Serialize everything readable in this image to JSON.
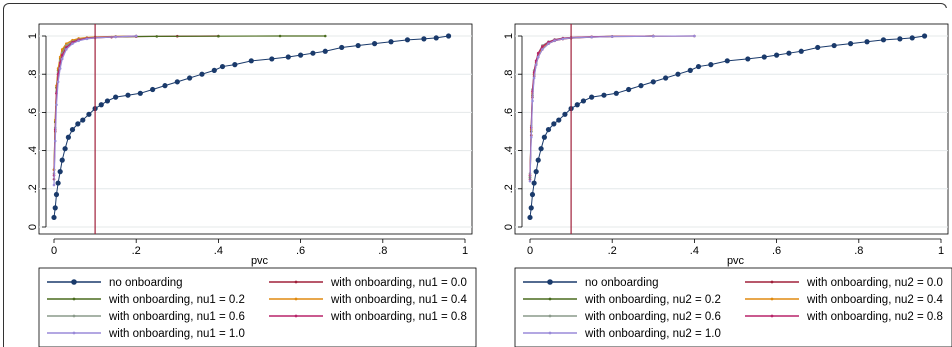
{
  "chart_data": [
    {
      "type": "line",
      "xlabel": "pvc",
      "ylabel": "",
      "xlim": [
        0,
        1
      ],
      "ylim": [
        0,
        1
      ],
      "x_ticks": [
        "0",
        ".2",
        ".4",
        ".6",
        ".8",
        "1"
      ],
      "y_ticks": [
        "0",
        ".2",
        ".4",
        ".6",
        ".8",
        "1"
      ],
      "vline": 0.1,
      "vline_color": "#a0203a",
      "grid": true,
      "legend_position": "bottom",
      "series": [
        {
          "name": "no onboarding",
          "color": "#1a3a6b",
          "marker": "circle",
          "x": [
            0,
            0.003,
            0.006,
            0.01,
            0.015,
            0.02,
            0.027,
            0.035,
            0.045,
            0.058,
            0.07,
            0.085,
            0.1,
            0.115,
            0.13,
            0.15,
            0.18,
            0.21,
            0.24,
            0.27,
            0.3,
            0.33,
            0.36,
            0.39,
            0.41,
            0.44,
            0.48,
            0.53,
            0.57,
            0.6,
            0.63,
            0.66,
            0.7,
            0.74,
            0.78,
            0.82,
            0.86,
            0.9,
            0.93,
            0.96
          ],
          "y": [
            0.05,
            0.1,
            0.17,
            0.23,
            0.29,
            0.35,
            0.41,
            0.47,
            0.51,
            0.54,
            0.56,
            0.59,
            0.62,
            0.64,
            0.66,
            0.68,
            0.69,
            0.7,
            0.72,
            0.74,
            0.76,
            0.78,
            0.8,
            0.82,
            0.84,
            0.85,
            0.87,
            0.88,
            0.89,
            0.9,
            0.91,
            0.92,
            0.94,
            0.95,
            0.96,
            0.97,
            0.98,
            0.985,
            0.99,
            1.0
          ]
        },
        {
          "name": "with onboarding, nu1 = 0.0",
          "color": "#a0203a",
          "marker": "small",
          "x": [
            0,
            0.003,
            0.006,
            0.01,
            0.015,
            0.02,
            0.03,
            0.045,
            0.06,
            0.08,
            0.1,
            0.14,
            0.2,
            0.3,
            0.4
          ],
          "y": [
            0.25,
            0.5,
            0.7,
            0.8,
            0.86,
            0.9,
            0.94,
            0.965,
            0.978,
            0.986,
            0.99,
            0.994,
            0.997,
            0.999,
            1.0
          ]
        },
        {
          "name": "with onboarding, nu1 = 0.2",
          "color": "#4a6b1e",
          "marker": "small",
          "x": [
            0,
            0.003,
            0.006,
            0.01,
            0.015,
            0.02,
            0.03,
            0.045,
            0.06,
            0.08,
            0.1,
            0.15,
            0.25,
            0.4,
            0.55,
            0.66
          ],
          "y": [
            0.3,
            0.55,
            0.73,
            0.82,
            0.88,
            0.92,
            0.95,
            0.972,
            0.983,
            0.99,
            0.993,
            0.996,
            0.998,
            0.999,
            1.0,
            1.0
          ]
        },
        {
          "name": "with onboarding, nu1 = 0.4",
          "color": "#e08a10",
          "marker": "small",
          "x": [
            0,
            0.003,
            0.006,
            0.01,
            0.015,
            0.02,
            0.03,
            0.045,
            0.06,
            0.08,
            0.1,
            0.15,
            0.2
          ],
          "y": [
            0.3,
            0.56,
            0.74,
            0.83,
            0.89,
            0.93,
            0.96,
            0.978,
            0.987,
            0.992,
            0.995,
            0.998,
            1.0
          ]
        },
        {
          "name": "with onboarding, nu1 = 0.6",
          "color": "#8a9a8a",
          "marker": "small",
          "x": [
            0,
            0.003,
            0.006,
            0.01,
            0.015,
            0.02,
            0.03,
            0.045,
            0.06,
            0.08,
            0.1,
            0.15,
            0.2
          ],
          "y": [
            0.28,
            0.52,
            0.71,
            0.81,
            0.87,
            0.91,
            0.95,
            0.97,
            0.982,
            0.989,
            0.993,
            0.997,
            1.0
          ]
        },
        {
          "name": "with onboarding, nu1 = 0.8",
          "color": "#b8246a",
          "marker": "small",
          "x": [
            0,
            0.003,
            0.006,
            0.01,
            0.015,
            0.02,
            0.03,
            0.045,
            0.06,
            0.08,
            0.1,
            0.15,
            0.2
          ],
          "y": [
            0.27,
            0.51,
            0.7,
            0.8,
            0.86,
            0.9,
            0.94,
            0.967,
            0.98,
            0.988,
            0.992,
            0.996,
            1.0
          ]
        },
        {
          "name": "with onboarding, nu1 = 1.0",
          "color": "#9a8ad8",
          "marker": "small",
          "x": [
            0,
            0.003,
            0.006,
            0.01,
            0.015,
            0.02,
            0.03,
            0.045,
            0.06,
            0.08,
            0.1,
            0.15,
            0.2
          ],
          "y": [
            0.22,
            0.45,
            0.64,
            0.76,
            0.83,
            0.88,
            0.93,
            0.96,
            0.975,
            0.985,
            0.99,
            0.995,
            1.0
          ]
        }
      ]
    },
    {
      "type": "line",
      "xlabel": "pvc",
      "ylabel": "",
      "xlim": [
        0,
        1
      ],
      "ylim": [
        0,
        1
      ],
      "x_ticks": [
        "0",
        ".2",
        ".4",
        ".6",
        ".8",
        "1"
      ],
      "y_ticks": [
        "0",
        ".2",
        ".4",
        ".6",
        ".8",
        "1"
      ],
      "vline": 0.1,
      "vline_color": "#a0203a",
      "grid": true,
      "legend_position": "bottom",
      "series": [
        {
          "name": "no onboarding",
          "color": "#1a3a6b",
          "marker": "circle",
          "x": [
            0,
            0.003,
            0.006,
            0.01,
            0.015,
            0.02,
            0.027,
            0.035,
            0.045,
            0.058,
            0.07,
            0.085,
            0.1,
            0.115,
            0.13,
            0.15,
            0.18,
            0.21,
            0.24,
            0.27,
            0.3,
            0.33,
            0.36,
            0.39,
            0.41,
            0.44,
            0.48,
            0.53,
            0.57,
            0.6,
            0.63,
            0.66,
            0.7,
            0.74,
            0.78,
            0.82,
            0.86,
            0.9,
            0.93,
            0.96
          ],
          "y": [
            0.05,
            0.1,
            0.17,
            0.23,
            0.29,
            0.35,
            0.41,
            0.47,
            0.51,
            0.54,
            0.56,
            0.59,
            0.62,
            0.64,
            0.66,
            0.68,
            0.69,
            0.7,
            0.72,
            0.74,
            0.76,
            0.78,
            0.8,
            0.82,
            0.84,
            0.85,
            0.87,
            0.88,
            0.89,
            0.9,
            0.91,
            0.92,
            0.94,
            0.95,
            0.96,
            0.97,
            0.98,
            0.985,
            0.99,
            1.0
          ]
        },
        {
          "name": "with onboarding, nu2 = 0.0",
          "color": "#a0203a",
          "marker": "small",
          "x": [
            0,
            0.003,
            0.006,
            0.01,
            0.015,
            0.02,
            0.03,
            0.045,
            0.06,
            0.08,
            0.1,
            0.15,
            0.2,
            0.3,
            0.4
          ],
          "y": [
            0.25,
            0.48,
            0.68,
            0.79,
            0.85,
            0.89,
            0.93,
            0.96,
            0.975,
            0.984,
            0.989,
            0.994,
            0.997,
            0.999,
            1.0
          ]
        },
        {
          "name": "with onboarding, nu2 = 0.2",
          "color": "#4a6b1e",
          "marker": "small",
          "x": [
            0,
            0.003,
            0.006,
            0.01,
            0.015,
            0.02,
            0.03,
            0.045,
            0.06,
            0.08,
            0.1,
            0.15,
            0.2,
            0.3
          ],
          "y": [
            0.26,
            0.5,
            0.69,
            0.8,
            0.86,
            0.9,
            0.94,
            0.965,
            0.978,
            0.986,
            0.99,
            0.995,
            0.998,
            1.0
          ]
        },
        {
          "name": "with onboarding, nu2 = 0.4",
          "color": "#e08a10",
          "marker": "small",
          "x": [
            0,
            0.003,
            0.006,
            0.01,
            0.015,
            0.02,
            0.03,
            0.045,
            0.06,
            0.08,
            0.1,
            0.15,
            0.2,
            0.3
          ],
          "y": [
            0.27,
            0.51,
            0.7,
            0.8,
            0.86,
            0.9,
            0.94,
            0.966,
            0.979,
            0.987,
            0.991,
            0.995,
            0.998,
            1.0
          ]
        },
        {
          "name": "with onboarding, nu2 = 0.6",
          "color": "#8a9a8a",
          "marker": "small",
          "x": [
            0,
            0.003,
            0.006,
            0.01,
            0.015,
            0.02,
            0.03,
            0.045,
            0.06,
            0.08,
            0.1,
            0.15,
            0.2,
            0.3
          ],
          "y": [
            0.28,
            0.53,
            0.72,
            0.82,
            0.87,
            0.91,
            0.95,
            0.97,
            0.982,
            0.989,
            0.992,
            0.996,
            0.998,
            1.0
          ]
        },
        {
          "name": "with onboarding, nu2 = 0.8",
          "color": "#b8246a",
          "marker": "small",
          "x": [
            0,
            0.003,
            0.006,
            0.01,
            0.015,
            0.02,
            0.03,
            0.045,
            0.06,
            0.08,
            0.1,
            0.15,
            0.2,
            0.3
          ],
          "y": [
            0.27,
            0.52,
            0.71,
            0.81,
            0.87,
            0.91,
            0.945,
            0.968,
            0.98,
            0.988,
            0.992,
            0.996,
            0.998,
            1.0
          ]
        },
        {
          "name": "with onboarding, nu2 = 1.0",
          "color": "#9a8ad8",
          "marker": "small",
          "x": [
            0,
            0.003,
            0.006,
            0.01,
            0.015,
            0.02,
            0.03,
            0.045,
            0.06,
            0.08,
            0.1,
            0.15,
            0.2,
            0.3,
            0.4
          ],
          "y": [
            0.24,
            0.47,
            0.66,
            0.78,
            0.85,
            0.89,
            0.93,
            0.96,
            0.976,
            0.985,
            0.99,
            0.994,
            0.997,
            0.999,
            1.0
          ]
        }
      ]
    }
  ]
}
